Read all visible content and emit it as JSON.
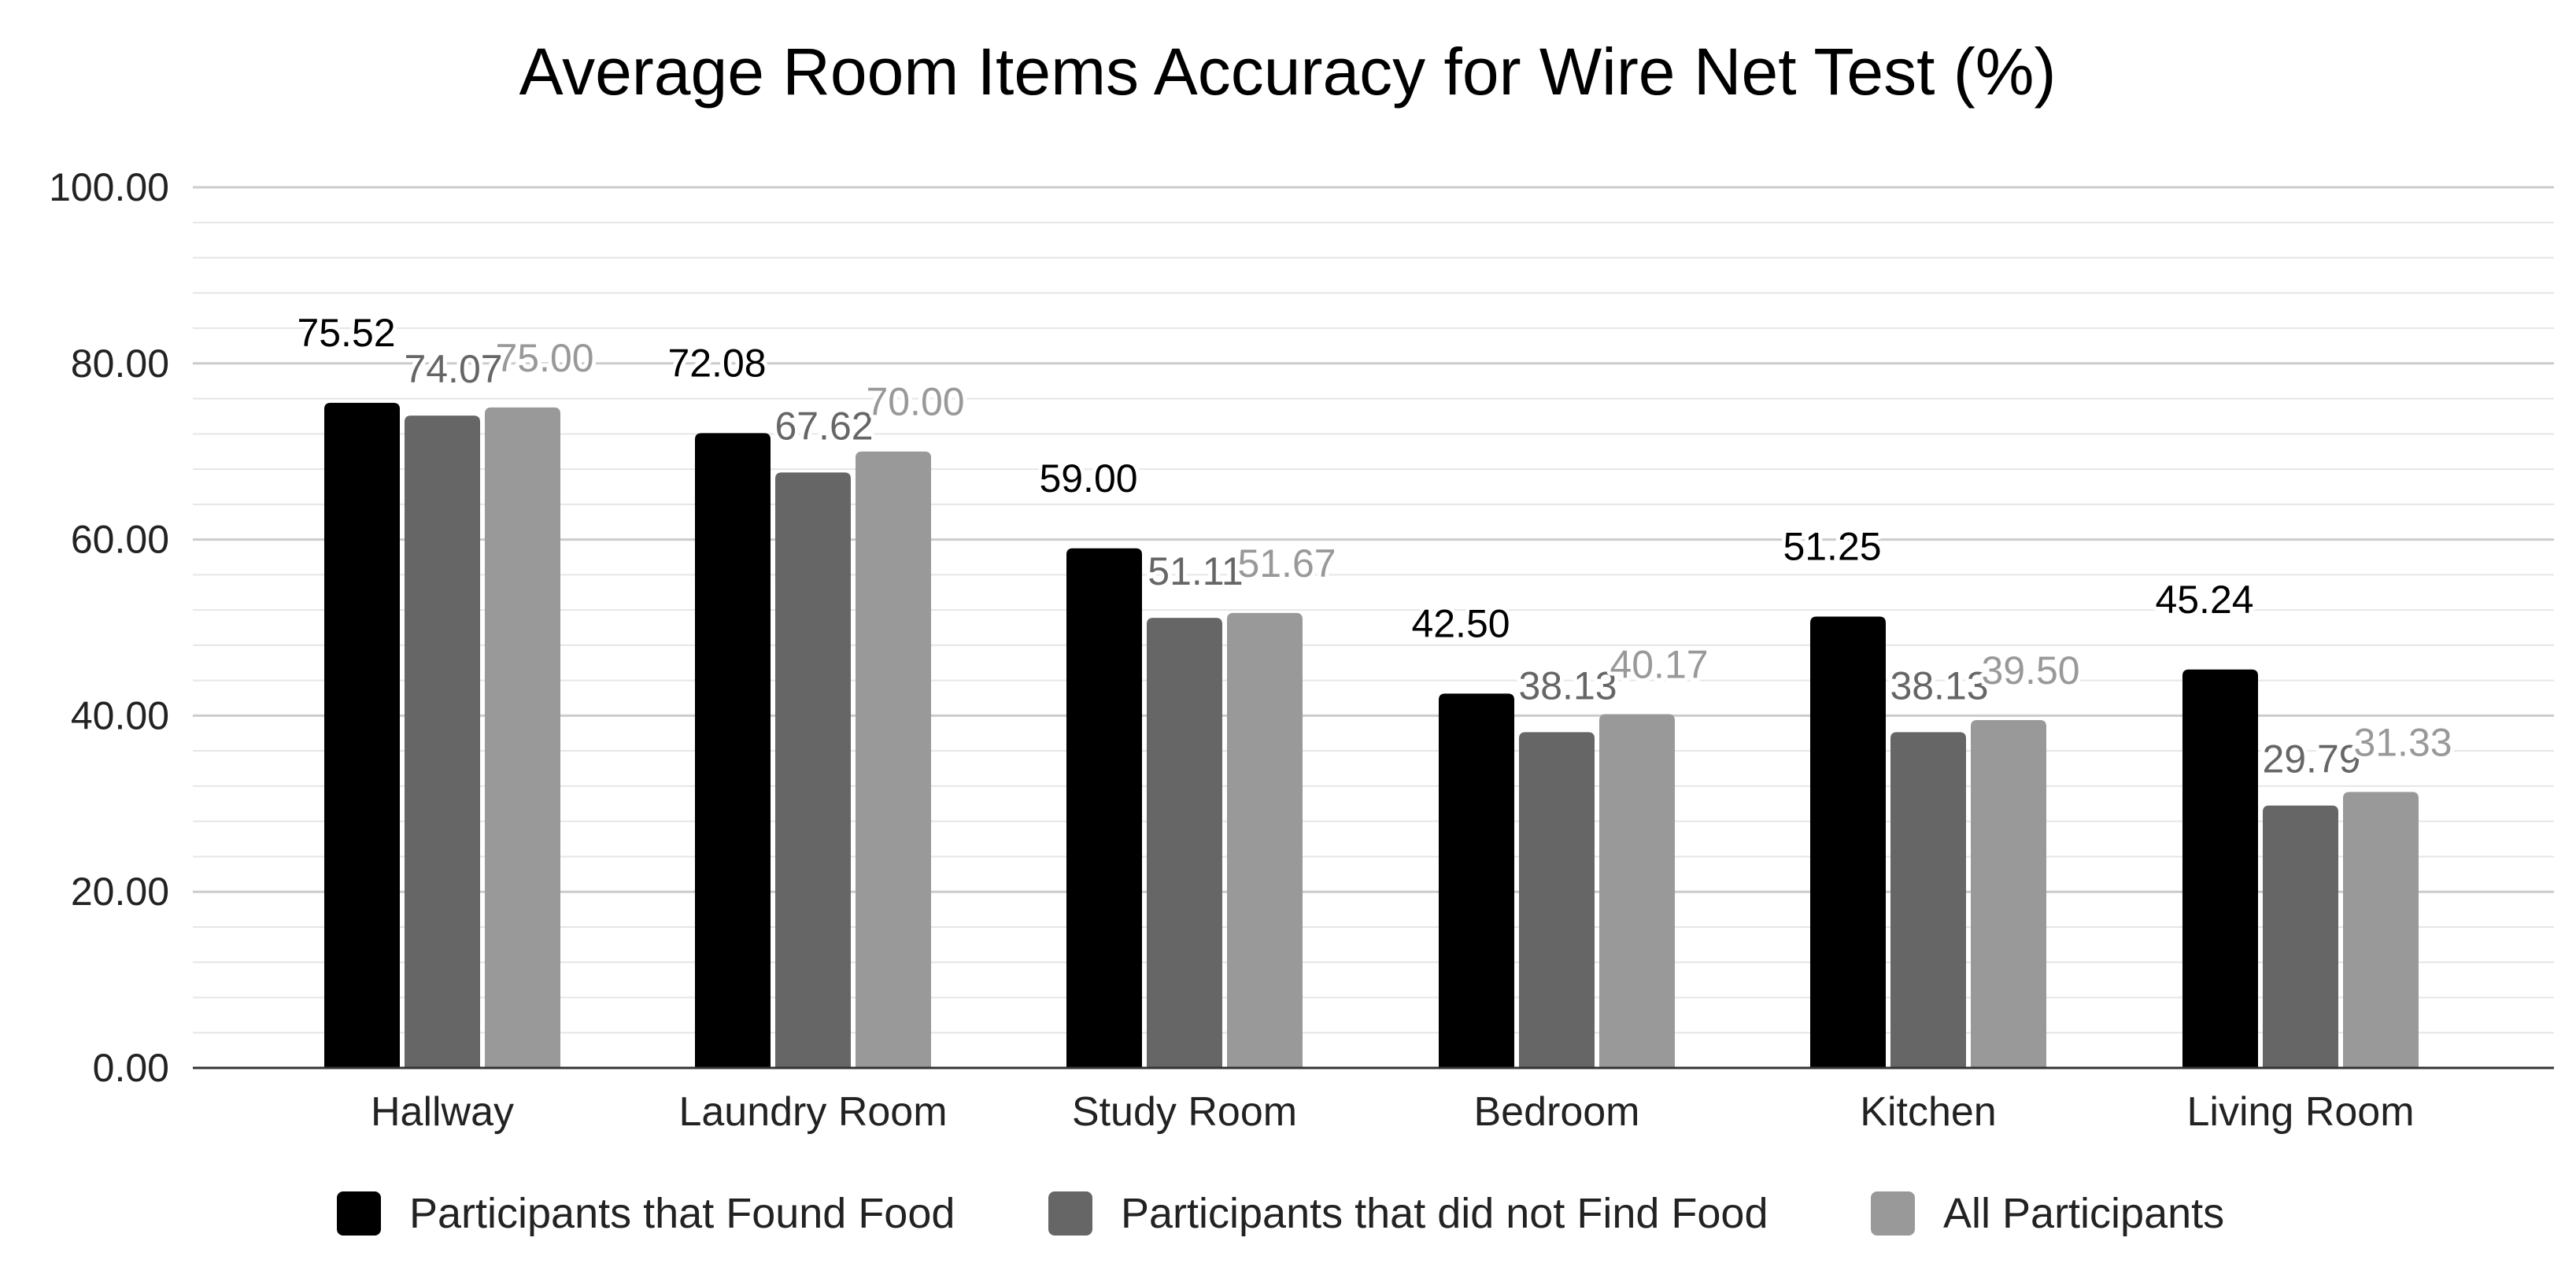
{
  "chart_data": {
    "type": "bar",
    "title": "Average Room Items Accuracy for Wire Net Test (%)",
    "xlabel": "",
    "ylabel": "",
    "categories": [
      "Hallway",
      "Laundry Room",
      "Study Room",
      "Bedroom",
      "Kitchen",
      "Living Room"
    ],
    "series": [
      {
        "name": "Participants that Found Food",
        "color": "#000000",
        "values": [
          75.52,
          72.08,
          59.0,
          42.5,
          51.25,
          45.24
        ],
        "labels": [
          "75.52",
          "72.08",
          "59.00",
          "42.50",
          "51.25",
          "45.24"
        ]
      },
      {
        "name": "Participants that did not Find Food",
        "color": "#666666",
        "values": [
          74.07,
          67.62,
          51.11,
          38.13,
          38.13,
          29.79
        ],
        "labels": [
          "74.07",
          "67.62",
          "51.11",
          "38.13",
          "38.13",
          "29.79"
        ]
      },
      {
        "name": "All Participants",
        "color": "#999999",
        "values": [
          75.0,
          70.0,
          51.67,
          40.17,
          39.5,
          31.33
        ],
        "labels": [
          "75.00",
          "70.00",
          "51.67",
          "40.17",
          "39.50",
          "31.33"
        ]
      }
    ],
    "ylim": [
      0,
      100
    ],
    "yticks": [
      "0.00",
      "20.00",
      "40.00",
      "60.00",
      "80.00",
      "100.00"
    ],
    "ytick_values": [
      0,
      20,
      40,
      60,
      80,
      100
    ],
    "minor_gridlines_per_major": 5,
    "grid": true,
    "legend_position": "bottom"
  }
}
